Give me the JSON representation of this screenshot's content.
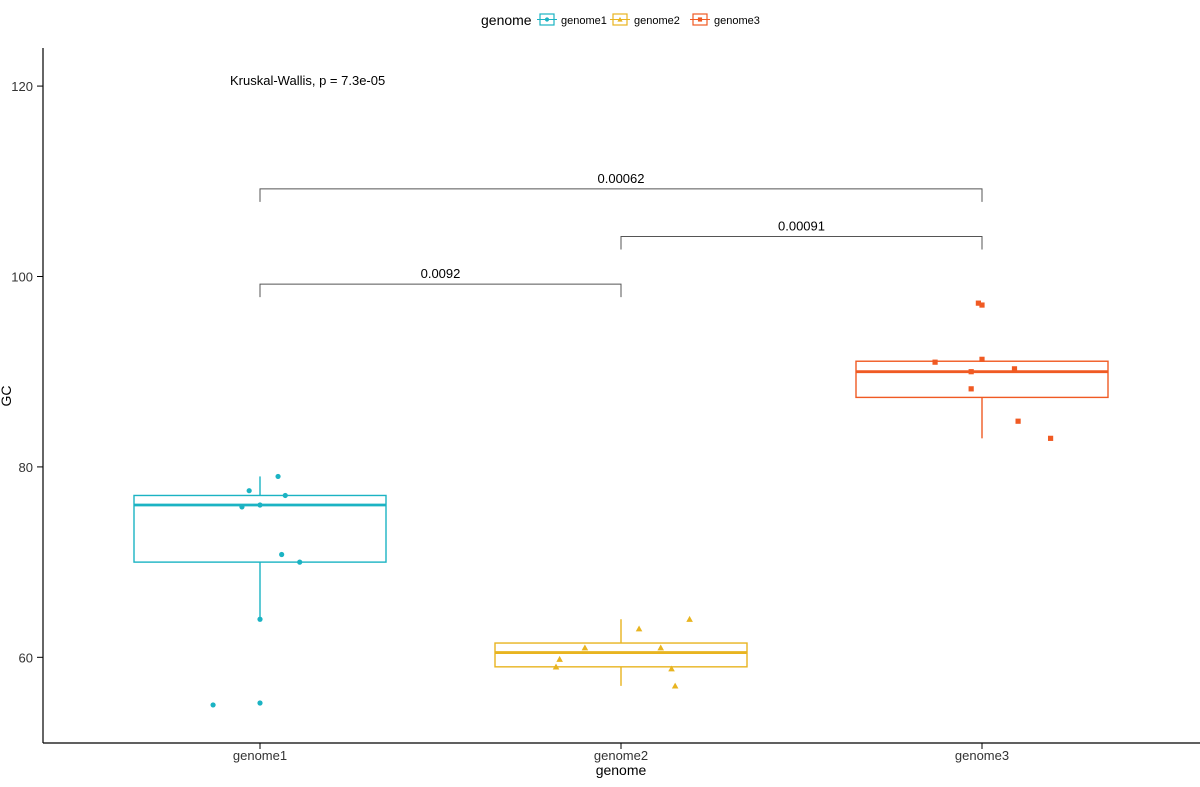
{
  "chart_data": {
    "type": "boxplot",
    "xlabel": "genome",
    "ylabel": "GC",
    "ylim": [
      51,
      124
    ],
    "yticks": [
      60,
      80,
      100,
      120
    ],
    "categories": [
      "genome1",
      "genome2",
      "genome3"
    ],
    "legend": {
      "title": "genome",
      "position": "top",
      "entries": [
        "genome1",
        "genome2",
        "genome3"
      ]
    },
    "annotation": "Kruskal-Wallis, p = 7.3e-05",
    "series": [
      {
        "name": "genome1",
        "color": "#1bb3c3",
        "shape": "circle",
        "box": {
          "q1": 70.0,
          "median": 76.0,
          "q3": 77.0,
          "whisker_low": 64.0,
          "whisker_high": 79.0
        },
        "points": [
          {
            "offset": -0.03,
            "y": 77.5
          },
          {
            "offset": 0.05,
            "y": 79.0
          },
          {
            "offset": -0.05,
            "y": 75.8
          },
          {
            "offset": 0.0,
            "y": 76.0
          },
          {
            "offset": 0.07,
            "y": 77.0
          },
          {
            "offset": 0.06,
            "y": 70.8
          },
          {
            "offset": 0.11,
            "y": 70.0
          },
          {
            "offset": 0.0,
            "y": 64.0
          },
          {
            "offset": 0.0,
            "y": 55.2
          },
          {
            "offset": -0.13,
            "y": 55.0
          }
        ]
      },
      {
        "name": "genome2",
        "color": "#e8b420",
        "shape": "triangle",
        "box": {
          "q1": 59.0,
          "median": 60.5,
          "q3": 61.5,
          "whisker_low": 57.0,
          "whisker_high": 64.0
        },
        "points": [
          {
            "offset": -0.1,
            "y": 61.0
          },
          {
            "offset": 0.05,
            "y": 63.0
          },
          {
            "offset": 0.19,
            "y": 64.0
          },
          {
            "offset": 0.11,
            "y": 61.0
          },
          {
            "offset": -0.17,
            "y": 59.8
          },
          {
            "offset": -0.18,
            "y": 59.0
          },
          {
            "offset": 0.14,
            "y": 58.8
          },
          {
            "offset": 0.15,
            "y": 57.0
          }
        ]
      },
      {
        "name": "genome3",
        "color": "#f05a23",
        "shape": "square",
        "box": {
          "q1": 87.3,
          "median": 90.0,
          "q3": 91.1,
          "whisker_low": 83.0,
          "whisker_high": 91.1
        },
        "points": [
          {
            "offset": -0.01,
            "y": 97.2
          },
          {
            "offset": 0.0,
            "y": 97.0
          },
          {
            "offset": -0.13,
            "y": 91.0
          },
          {
            "offset": 0.0,
            "y": 91.3
          },
          {
            "offset": 0.09,
            "y": 90.3
          },
          {
            "offset": -0.03,
            "y": 90.0
          },
          {
            "offset": -0.03,
            "y": 88.2
          },
          {
            "offset": 0.1,
            "y": 84.8
          },
          {
            "offset": 0.19,
            "y": 83.0
          }
        ]
      }
    ],
    "comparisons": [
      {
        "from": "genome1",
        "to": "genome2",
        "y": 99.2,
        "label": "0.0092"
      },
      {
        "from": "genome2",
        "to": "genome3",
        "y": 104.2,
        "label": "0.00091"
      },
      {
        "from": "genome1",
        "to": "genome3",
        "y": 109.2,
        "label": "0.00062"
      }
    ]
  }
}
